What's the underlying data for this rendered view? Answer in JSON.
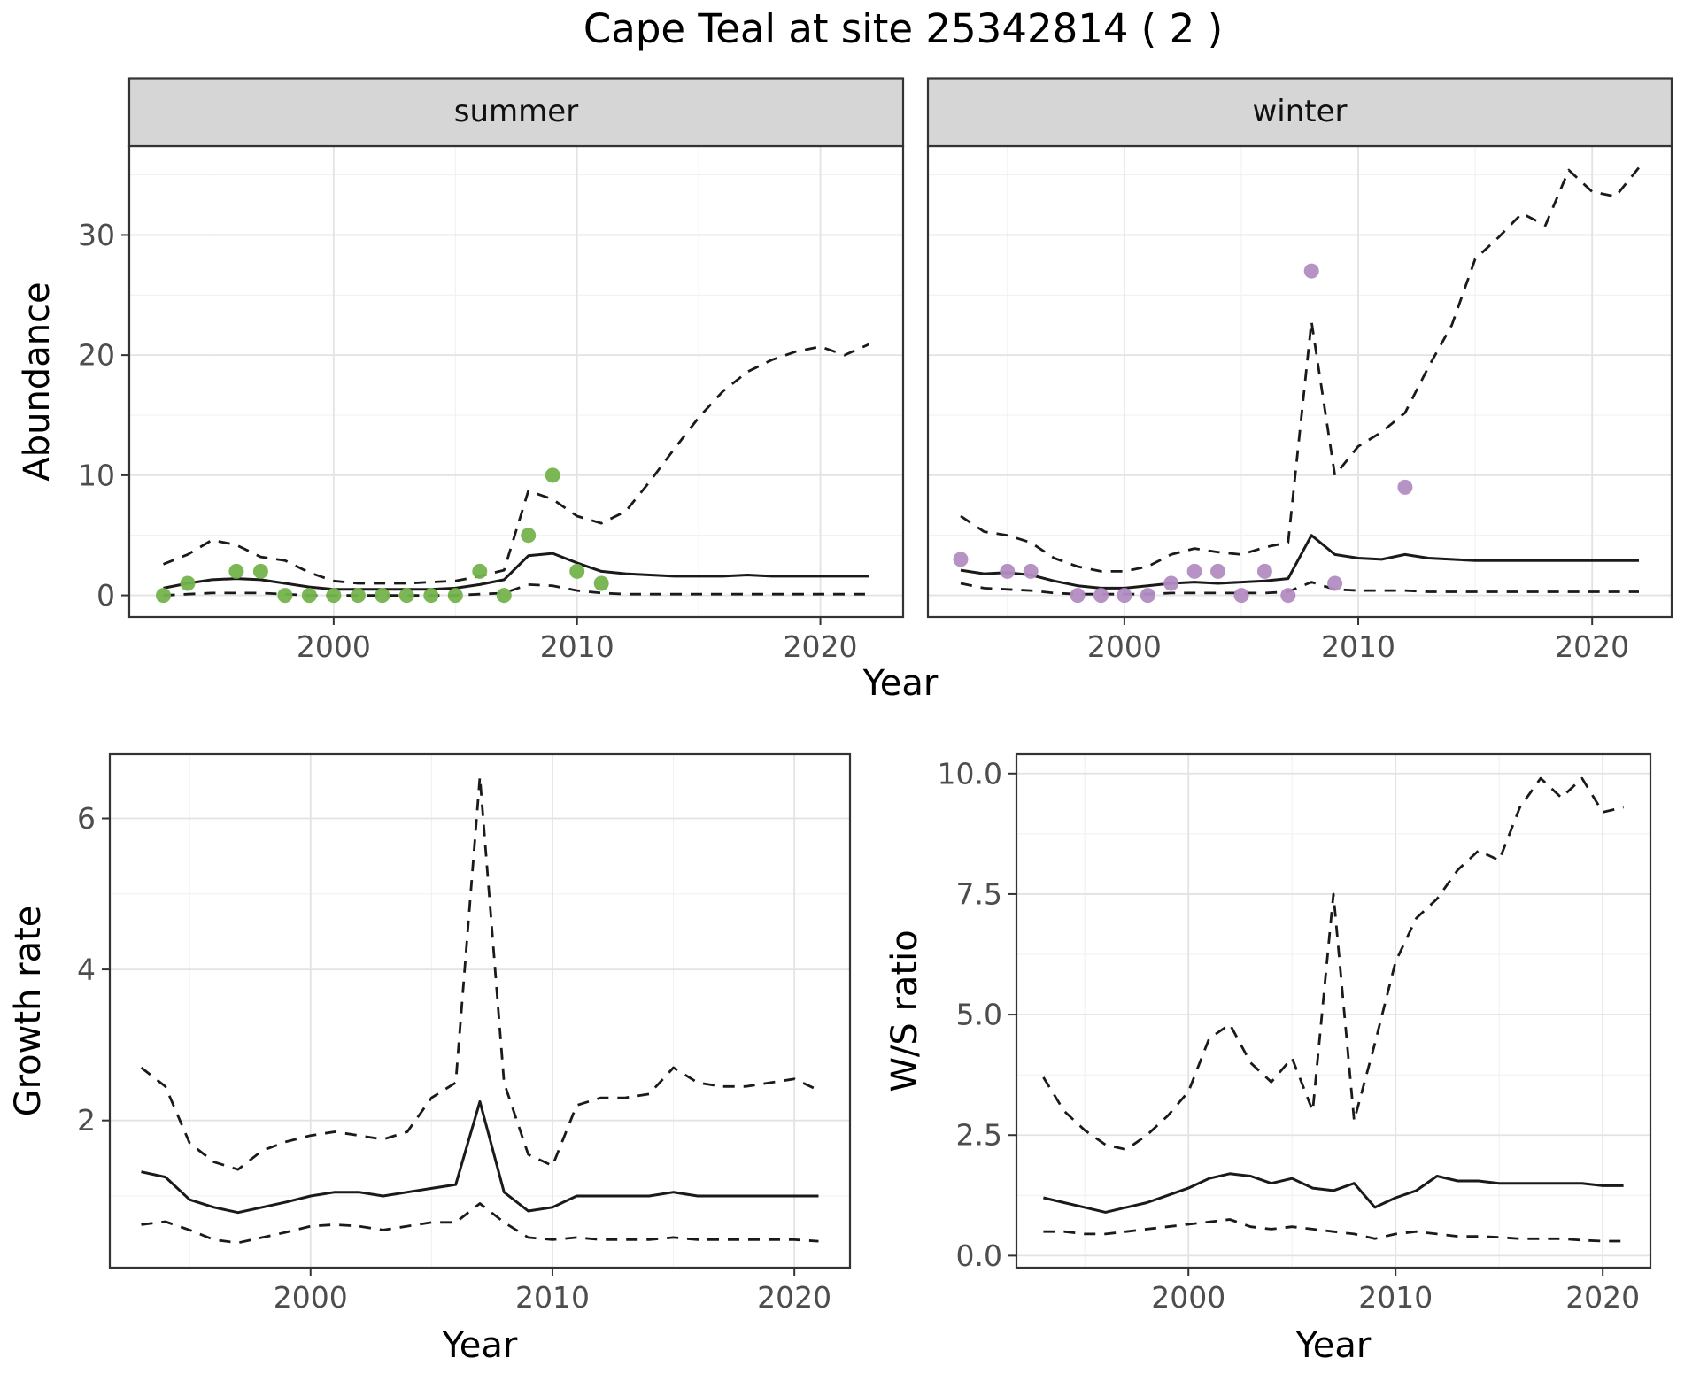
{
  "title": "Cape Teal at site 25342814 ( 2 )",
  "labels": {
    "abundance_y": "Abundance",
    "abundance_x": "Year",
    "growth_y": "Growth rate",
    "growth_x": "Year",
    "ratio_y": "W/S ratio",
    "ratio_x": "Year"
  },
  "colors": {
    "line": "#1a1a1a",
    "points_summer": "#74b34c",
    "points_winter": "#b28cc2",
    "strip_bg": "#d6d6d6",
    "panel_border": "#333333",
    "grid_major": "#e3e3e3",
    "grid_minor": "#f1f1f1",
    "tick_text": "#4d4d4d"
  },
  "chart_data": [
    {
      "id": "abundance_summer",
      "type": "line",
      "strip_label": "summer",
      "xlabel": "Year",
      "ylabel": "Abundance",
      "x_range": [
        1991.6,
        2023.4
      ],
      "y_range": [
        -1.8,
        37.4
      ],
      "x_ticks": [
        2000,
        2010,
        2020
      ],
      "x_tick_labels": [
        "2000",
        "2010",
        "2020"
      ],
      "y_ticks": [
        0,
        10,
        20,
        30
      ],
      "y_tick_labels": [
        "0",
        "10",
        "20",
        "30"
      ],
      "x": [
        1993,
        1994,
        1995,
        1996,
        1997,
        1998,
        1999,
        2000,
        2001,
        2002,
        2003,
        2004,
        2005,
        2006,
        2007,
        2008,
        2009,
        2010,
        2011,
        2012,
        2013,
        2014,
        2015,
        2016,
        2017,
        2018,
        2019,
        2020,
        2021,
        2022
      ],
      "series": [
        {
          "name": "upper_95ci",
          "style": "dashed",
          "y": [
            2.6,
            3.4,
            4.6,
            4.2,
            3.2,
            2.9,
            1.9,
            1.2,
            1.0,
            1.0,
            1.0,
            1.1,
            1.2,
            1.6,
            2.1,
            8.7,
            8.0,
            6.6,
            6.0,
            7.0,
            9.5,
            12.2,
            14.8,
            17.0,
            18.6,
            19.6,
            20.3,
            20.7,
            20.0,
            20.9
          ]
        },
        {
          "name": "fitted_mean",
          "style": "solid",
          "y": [
            0.6,
            1.0,
            1.3,
            1.4,
            1.3,
            1.0,
            0.7,
            0.5,
            0.5,
            0.5,
            0.5,
            0.5,
            0.6,
            0.9,
            1.3,
            3.3,
            3.5,
            2.7,
            2.0,
            1.8,
            1.7,
            1.6,
            1.6,
            1.6,
            1.7,
            1.6,
            1.6,
            1.6,
            1.6,
            1.6
          ]
        },
        {
          "name": "lower_95ci",
          "style": "dashed",
          "y": [
            0.0,
            0.1,
            0.2,
            0.2,
            0.2,
            0.1,
            0.0,
            0.0,
            0.0,
            0.0,
            0.0,
            0.0,
            0.0,
            0.1,
            0.2,
            0.9,
            0.8,
            0.4,
            0.2,
            0.1,
            0.1,
            0.1,
            0.1,
            0.1,
            0.1,
            0.1,
            0.1,
            0.1,
            0.1,
            0.1
          ]
        }
      ],
      "points": {
        "name": "observed_counts_summer",
        "color": "#74b34c",
        "x": [
          1993,
          1994,
          1996,
          1997,
          1998,
          1999,
          2000,
          2001,
          2002,
          2003,
          2004,
          2005,
          2006,
          2007,
          2008,
          2009,
          2010,
          2011
        ],
        "y": [
          0,
          1,
          2,
          2,
          0,
          0,
          0,
          0,
          0,
          0,
          0,
          0,
          2,
          0,
          5,
          10,
          2,
          1
        ]
      }
    },
    {
      "id": "abundance_winter",
      "type": "line",
      "strip_label": "winter",
      "xlabel": "Year",
      "ylabel": "Abundance",
      "x_range": [
        1991.6,
        2023.4
      ],
      "y_range": [
        -1.8,
        37.4
      ],
      "x_ticks": [
        2000,
        2010,
        2020
      ],
      "x_tick_labels": [
        "2000",
        "2010",
        "2020"
      ],
      "y_ticks": [
        0,
        10,
        20,
        30
      ],
      "y_tick_labels": [
        "0",
        "10",
        "20",
        "30"
      ],
      "x": [
        1993,
        1994,
        1995,
        1996,
        1997,
        1998,
        1999,
        2000,
        2001,
        2002,
        2003,
        2004,
        2005,
        2006,
        2007,
        2008,
        2009,
        2010,
        2011,
        2012,
        2013,
        2014,
        2015,
        2016,
        2017,
        2018,
        2019,
        2020,
        2021,
        2022
      ],
      "series": [
        {
          "name": "upper_95ci",
          "style": "dashed",
          "y": [
            6.6,
            5.3,
            5.0,
            4.4,
            3.1,
            2.4,
            2.0,
            2.0,
            2.4,
            3.4,
            3.9,
            3.6,
            3.4,
            4.0,
            4.4,
            22.8,
            10.0,
            12.4,
            13.6,
            15.2,
            19.0,
            22.5,
            28.0,
            29.8,
            31.8,
            30.8,
            35.4,
            33.6,
            33.2,
            35.6
          ]
        },
        {
          "name": "fitted_mean",
          "style": "solid",
          "y": [
            2.1,
            1.8,
            1.9,
            1.7,
            1.2,
            0.8,
            0.6,
            0.6,
            0.8,
            1.0,
            1.1,
            1.0,
            1.1,
            1.2,
            1.4,
            5.0,
            3.4,
            3.1,
            3.0,
            3.4,
            3.1,
            3.0,
            2.9,
            2.9,
            2.9,
            2.9,
            2.9,
            2.9,
            2.9,
            2.9
          ]
        },
        {
          "name": "lower_95ci",
          "style": "dashed",
          "y": [
            1.0,
            0.6,
            0.5,
            0.4,
            0.2,
            0.1,
            0.1,
            0.1,
            0.1,
            0.2,
            0.2,
            0.2,
            0.2,
            0.2,
            0.3,
            1.1,
            0.5,
            0.4,
            0.4,
            0.4,
            0.3,
            0.3,
            0.3,
            0.3,
            0.3,
            0.3,
            0.3,
            0.3,
            0.3,
            0.3
          ]
        }
      ],
      "points": {
        "name": "observed_counts_winter",
        "color": "#b28cc2",
        "x": [
          1993,
          1995,
          1996,
          1998,
          1999,
          2000,
          2001,
          2002,
          2003,
          2004,
          2005,
          2006,
          2007,
          2008,
          2009,
          2012
        ],
        "y": [
          3,
          2,
          2,
          0,
          0,
          0,
          0,
          1,
          2,
          2,
          0,
          2,
          0,
          27,
          1,
          9
        ]
      }
    },
    {
      "id": "growth",
      "type": "line",
      "strip_label": "",
      "xlabel": "Year",
      "ylabel": "Growth rate",
      "x_range": [
        1991.7,
        2022.3
      ],
      "y_range": [
        0.05,
        6.85
      ],
      "x_ticks": [
        2000,
        2010,
        2020
      ],
      "x_tick_labels": [
        "2000",
        "2010",
        "2020"
      ],
      "y_ticks": [
        2,
        4,
        6
      ],
      "y_tick_labels": [
        "2",
        "4",
        "6"
      ],
      "x": [
        1993,
        1994,
        1995,
        1996,
        1997,
        1998,
        1999,
        2000,
        2001,
        2002,
        2003,
        2004,
        2005,
        2006,
        2007,
        2008,
        2009,
        2010,
        2011,
        2012,
        2013,
        2014,
        2015,
        2016,
        2017,
        2018,
        2019,
        2020,
        2021
      ],
      "series": [
        {
          "name": "upper_95ci",
          "style": "dashed",
          "y": [
            2.7,
            2.45,
            1.7,
            1.45,
            1.35,
            1.6,
            1.72,
            1.8,
            1.85,
            1.8,
            1.75,
            1.85,
            2.3,
            2.5,
            6.55,
            2.5,
            1.55,
            1.4,
            2.2,
            2.3,
            2.3,
            2.35,
            2.7,
            2.5,
            2.45,
            2.45,
            2.5,
            2.55,
            2.4
          ]
        },
        {
          "name": "fitted_mean",
          "style": "solid",
          "y": [
            1.32,
            1.25,
            0.95,
            0.85,
            0.78,
            0.85,
            0.92,
            1.0,
            1.05,
            1.05,
            1.0,
            1.05,
            1.1,
            1.15,
            2.25,
            1.05,
            0.8,
            0.85,
            1.0,
            1.0,
            1.0,
            1.0,
            1.05,
            1.0,
            1.0,
            1.0,
            1.0,
            1.0,
            1.0
          ]
        },
        {
          "name": "lower_95ci",
          "style": "dashed",
          "y": [
            0.62,
            0.66,
            0.55,
            0.42,
            0.38,
            0.45,
            0.52,
            0.6,
            0.62,
            0.6,
            0.55,
            0.6,
            0.65,
            0.65,
            0.9,
            0.65,
            0.45,
            0.42,
            0.45,
            0.42,
            0.42,
            0.42,
            0.45,
            0.42,
            0.42,
            0.42,
            0.42,
            0.42,
            0.4
          ]
        }
      ],
      "points": null
    },
    {
      "id": "ratio",
      "type": "line",
      "strip_label": "",
      "xlabel": "Year",
      "ylabel": "W/S ratio",
      "x_range": [
        1991.7,
        2022.3
      ],
      "y_range": [
        -0.25,
        10.4
      ],
      "x_ticks": [
        2000,
        2010,
        2020
      ],
      "x_tick_labels": [
        "2000",
        "2010",
        "2020"
      ],
      "y_ticks": [
        0,
        2.5,
        5,
        7.5,
        10
      ],
      "y_tick_labels": [
        "0.0",
        "2.5",
        "5.0",
        "7.5",
        "10.0"
      ],
      "x": [
        1993,
        1994,
        1995,
        1996,
        1997,
        1998,
        1999,
        2000,
        2001,
        2002,
        2003,
        2004,
        2005,
        2006,
        2007,
        2008,
        2009,
        2010,
        2011,
        2012,
        2013,
        2014,
        2015,
        2016,
        2017,
        2018,
        2019,
        2020,
        2021
      ],
      "series": [
        {
          "name": "upper_95ci",
          "style": "dashed",
          "y": [
            3.7,
            3.0,
            2.6,
            2.3,
            2.2,
            2.5,
            2.9,
            3.4,
            4.5,
            4.8,
            4.0,
            3.6,
            4.1,
            3.0,
            7.5,
            2.8,
            4.4,
            6.1,
            7.0,
            7.4,
            8.0,
            8.4,
            8.2,
            9.3,
            9.9,
            9.5,
            9.9,
            9.2,
            9.3
          ]
        },
        {
          "name": "fitted_mean",
          "style": "solid",
          "y": [
            1.2,
            1.1,
            1.0,
            0.9,
            1.0,
            1.1,
            1.25,
            1.4,
            1.6,
            1.7,
            1.65,
            1.5,
            1.6,
            1.4,
            1.35,
            1.5,
            1.0,
            1.2,
            1.35,
            1.65,
            1.55,
            1.55,
            1.5,
            1.5,
            1.5,
            1.5,
            1.5,
            1.45,
            1.45
          ]
        },
        {
          "name": "lower_95ci",
          "style": "dashed",
          "y": [
            0.5,
            0.5,
            0.45,
            0.45,
            0.5,
            0.55,
            0.6,
            0.65,
            0.7,
            0.75,
            0.6,
            0.55,
            0.6,
            0.55,
            0.5,
            0.45,
            0.35,
            0.45,
            0.5,
            0.45,
            0.4,
            0.4,
            0.38,
            0.35,
            0.35,
            0.35,
            0.32,
            0.3,
            0.3
          ]
        }
      ],
      "points": null
    }
  ]
}
